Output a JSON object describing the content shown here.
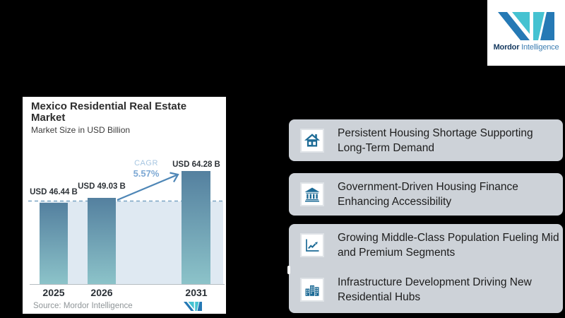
{
  "brand": {
    "name_bold": "Mordor",
    "name_light": "Intelligence"
  },
  "chart_card": {
    "title": "Mexico Residential Real Estate Market",
    "subtitle": "Market Size in USD Billion",
    "cagr_label": "CAGR",
    "cagr_value": "5.57%",
    "source": "Source: Mordor Intelligence"
  },
  "chart_data": {
    "type": "bar",
    "title": "Mexico Residential Real Estate Market",
    "ylabel": "Market Size in USD Billion",
    "categories": [
      "2025",
      "2026",
      "2031"
    ],
    "values": [
      46.44,
      49.03,
      64.28
    ],
    "value_labels": [
      "USD 46.44 B",
      "USD 49.03 B",
      "USD 64.28 B"
    ],
    "cagr_percent": 5.57,
    "annotations": [
      "CAGR 5.57%",
      "dashed reference line at 2025 value"
    ],
    "ylim": [
      0,
      70
    ],
    "grid": false,
    "legend": "none"
  },
  "highlights": [
    {
      "icon": "house-icon",
      "text": "Persistent Housing Shortage Supporting Long-Term Demand"
    },
    {
      "icon": "bank-icon",
      "text": "Government-Driven Housing Finance Enhancing Accessibility"
    },
    {
      "icon": "line-chart-icon",
      "text": "Growing Middle-Class Population Fueling Mid and Premium Segments"
    },
    {
      "icon": "buildings-icon",
      "text": "Infrastructure Development Driving New Residential Hubs"
    }
  ],
  "colors": {
    "background": "#000000",
    "card": "#ffffff",
    "highlight_box": "#cdd2d8",
    "icon_blue": "#1d6b96",
    "bar_top": "#54809f",
    "bar_bottom": "#8cc3c9",
    "plot_band": "#dfe9f2",
    "dashed_line": "#7aa5c4",
    "arrow": "#4e86b6",
    "cagr_label": "#a7c6e1",
    "cagr_value": "#7ca8d4",
    "logo_teal": "#45c2d1",
    "logo_blue": "#2579b5"
  }
}
